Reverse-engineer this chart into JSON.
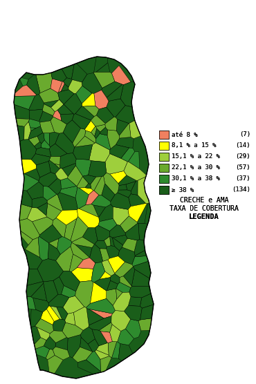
{
  "title_line1": "LEGENDA",
  "title_line2": "TAXA DE COBERTURA",
  "title_line3": "CRECHE e AMA",
  "legend_entries": [
    {
      "≥ 38 %": "(134)",
      "color": "#1a5e1a"
    },
    {
      "30,1 % a 38 %": "(37)",
      "color": "#2e8b2e"
    },
    {
      "22,1 % a 30 %": "(57)",
      "color": "#6aaa2e"
    },
    {
      "15,1 % a 22 %": "(29)",
      "color": "#9ecf3c"
    },
    {
      "8,1 % a 15 %": "(14)",
      "color": "#ffff00"
    },
    {
      "até 8 %": "(7)",
      "color": "#f08060"
    }
  ],
  "legend_labels": [
    "≥ 38 %",
    "30,1 % a 38 %",
    "22,1 % a 30 %",
    "15,1 % a 22 %",
    "8,1 % a 15 %",
    "até 8 %"
  ],
  "legend_counts": [
    "(134)",
    "(37)",
    "(57)",
    "(29)",
    "(14)",
    "(7)"
  ],
  "legend_colors": [
    "#1a5e1a",
    "#2e8b2e",
    "#6aaa2e",
    "#9ecf3c",
    "#ffff00",
    "#f08060"
  ],
  "background_color": "#ffffff",
  "map_border_color": "#000000",
  "fig_width": 3.7,
  "fig_height": 5.56,
  "dpi": 100
}
